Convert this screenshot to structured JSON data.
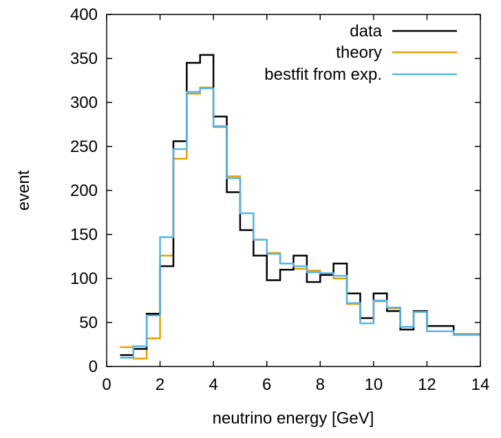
{
  "chart_data": {
    "type": "line",
    "style": "step histogram",
    "xlabel": "neutrino energy [GeV]",
    "ylabel": "event",
    "xlim": [
      0,
      14
    ],
    "ylim": [
      0,
      400
    ],
    "x_ticks": [
      "0",
      "2",
      "4",
      "6",
      "8",
      "10",
      "12",
      "14"
    ],
    "y_ticks": [
      "0",
      "50",
      "100",
      "150",
      "200",
      "250",
      "300",
      "350",
      "400"
    ],
    "grid": false,
    "legend_position": "top-right",
    "bin_edges": [
      0.5,
      1.0,
      1.5,
      2.0,
      2.5,
      3.0,
      3.5,
      4.0,
      4.5,
      5.0,
      5.5,
      6.0,
      6.5,
      7.0,
      7.5,
      8.0,
      8.5,
      9.0,
      9.5,
      10.0,
      10.5,
      11.0,
      11.5,
      12.0,
      13.0,
      14.0
    ],
    "series": [
      {
        "name": "data",
        "color": "#000000",
        "values": [
          13,
          20,
          60,
          114,
          256,
          345,
          354,
          284,
          198,
          155,
          126,
          98,
          110,
          126,
          96,
          104,
          117,
          83,
          55,
          83,
          63,
          42,
          63,
          46,
          36
        ]
      },
      {
        "name": "theory",
        "color": "#e69f00",
        "values": [
          22,
          9,
          32,
          126,
          236,
          310,
          317,
          272,
          216,
          174,
          144,
          129,
          117,
          111,
          109,
          105,
          100,
          71,
          49,
          74,
          66,
          45,
          62,
          40,
          37
        ]
      },
      {
        "name": "bestfit from exp.",
        "color": "#56b4e9",
        "values": [
          10,
          23,
          58,
          147,
          247,
          312,
          316,
          273,
          214,
          174,
          144,
          128,
          117,
          114,
          107,
          106,
          103,
          72,
          49,
          75,
          67,
          45,
          62,
          40,
          36
        ]
      }
    ]
  }
}
